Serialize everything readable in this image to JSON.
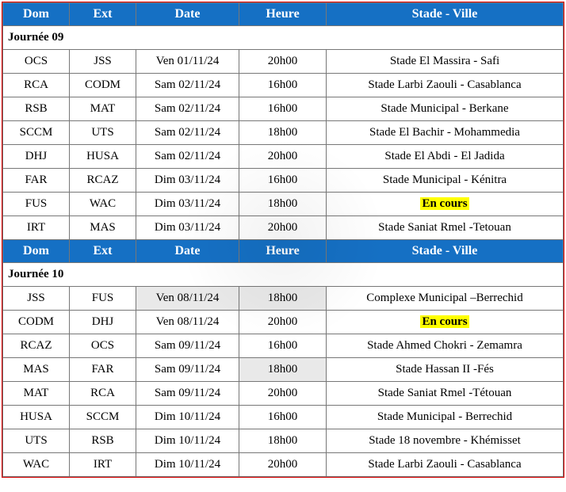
{
  "colors": {
    "header_bg": "#1570c4",
    "header_fg": "#ffffff",
    "border": "#777777",
    "outer_border": "#d00000",
    "highlight_bg": "#ffff00",
    "shade_bg": "#e9e9e9",
    "text": "#000000"
  },
  "typography": {
    "font_family": "Times New Roman",
    "header_fontsize_pt": 12,
    "cell_fontsize_pt": 11
  },
  "headers": {
    "dom": "Dom",
    "ext": "Ext",
    "date": "Date",
    "heure": "Heure",
    "stade": "Stade - Ville"
  },
  "sections": [
    {
      "title": "Journée 09",
      "rows": [
        {
          "dom": "OCS",
          "ext": "JSS",
          "date": "Ven 01/11/24",
          "heure": "20h00",
          "stade": "Stade El Massira - Safi",
          "highlight": false
        },
        {
          "dom": "RCA",
          "ext": "CODM",
          "date": "Sam 02/11/24",
          "heure": "16h00",
          "stade": "Stade Larbi Zaouli - Casablanca",
          "highlight": false
        },
        {
          "dom": "RSB",
          "ext": "MAT",
          "date": "Sam 02/11/24",
          "heure": "16h00",
          "stade": "Stade Municipal - Berkane",
          "highlight": false
        },
        {
          "dom": "SCCM",
          "ext": "UTS",
          "date": "Sam 02/11/24",
          "heure": "18h00",
          "stade": "Stade El Bachir - Mohammedia",
          "highlight": false
        },
        {
          "dom": "DHJ",
          "ext": "HUSA",
          "date": "Sam 02/11/24",
          "heure": "20h00",
          "stade": "Stade El Abdi - El Jadida",
          "highlight": false
        },
        {
          "dom": "FAR",
          "ext": "RCAZ",
          "date": "Dim 03/11/24",
          "heure": "16h00",
          "stade": "Stade Municipal - Kénitra",
          "highlight": false
        },
        {
          "dom": "FUS",
          "ext": "WAC",
          "date": "Dim 03/11/24",
          "heure": "18h00",
          "stade": "En cours",
          "highlight": true
        },
        {
          "dom": "IRT",
          "ext": "MAS",
          "date": "Dim 03/11/24",
          "heure": "20h00",
          "stade": "Stade Saniat Rmel -Tetouan",
          "highlight": false
        }
      ]
    },
    {
      "title": "Journée 10",
      "rows": [
        {
          "dom": "JSS",
          "ext": "FUS",
          "date": "Ven 08/11/24",
          "heure": "18h00",
          "stade": "Complexe Municipal –Berrechid",
          "highlight": false,
          "shade_date": true,
          "shade_heure": true
        },
        {
          "dom": "CODM",
          "ext": "DHJ",
          "date": "Ven 08/11/24",
          "heure": "20h00",
          "stade": "En cours",
          "highlight": true
        },
        {
          "dom": "RCAZ",
          "ext": "OCS",
          "date": "Sam 09/11/24",
          "heure": "16h00",
          "stade": "Stade Ahmed Chokri - Zemamra",
          "highlight": false
        },
        {
          "dom": "MAS",
          "ext": "FAR",
          "date": "Sam 09/11/24",
          "heure": "18h00",
          "stade": "Stade Hassan II -Fés",
          "highlight": false,
          "shade_heure": true
        },
        {
          "dom": "MAT",
          "ext": "RCA",
          "date": "Sam 09/11/24",
          "heure": "20h00",
          "stade": "Stade Saniat Rmel -Tétouan",
          "highlight": false
        },
        {
          "dom": "HUSA",
          "ext": "SCCM",
          "date": "Dim 10/11/24",
          "heure": "16h00",
          "stade": "Stade Municipal - Berrechid",
          "highlight": false
        },
        {
          "dom": "UTS",
          "ext": "RSB",
          "date": "Dim 10/11/24",
          "heure": "18h00",
          "stade": "Stade 18 novembre - Khémisset",
          "highlight": false
        },
        {
          "dom": "WAC",
          "ext": "IRT",
          "date": "Dim 10/11/24",
          "heure": "20h00",
          "stade": "Stade Larbi Zaouli - Casablanca",
          "highlight": false
        }
      ]
    }
  ]
}
